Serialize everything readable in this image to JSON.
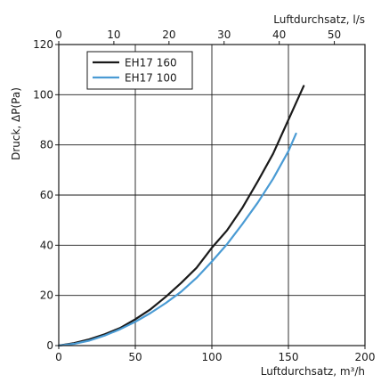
{
  "chart_data": {
    "type": "line",
    "xlabel": "Luftdurchsatz, m³/h",
    "ylabel": "Druck, ΔP(Pa)",
    "x2label": "Luftdurchsatz, l/s",
    "xlim": [
      0,
      200
    ],
    "ylim": [
      0,
      120
    ],
    "x2lim": [
      0,
      55.56
    ],
    "xticks": [
      "0",
      "50",
      "100",
      "150",
      "200"
    ],
    "yticks": [
      "0",
      "20",
      "40",
      "60",
      "80",
      "100",
      "120"
    ],
    "x2ticks": [
      "0",
      "10",
      "20",
      "30",
      "40",
      "50"
    ],
    "grid": true,
    "legend_position": "top-left",
    "series": [
      {
        "name": "EH17 160",
        "color": "#1a1a1a",
        "x": [
          0,
          10,
          20,
          30,
          40,
          50,
          60,
          70,
          80,
          90,
          100,
          110,
          120,
          130,
          140,
          150,
          160
        ],
        "y": [
          0,
          1,
          2.5,
          4.5,
          7,
          10.5,
          14.5,
          19.5,
          25,
          31,
          39,
          46,
          55,
          65.5,
          76.5,
          90,
          103.5
        ]
      },
      {
        "name": "EH17 100",
        "color": "#4a9bd4",
        "x": [
          0,
          10,
          20,
          30,
          40,
          50,
          60,
          70,
          80,
          90,
          100,
          110,
          120,
          130,
          140,
          150,
          155
        ],
        "y": [
          0,
          0.7,
          2,
          4,
          6.5,
          9.5,
          13,
          17,
          21.5,
          27,
          33.5,
          40.5,
          48.5,
          57,
          66.5,
          77.5,
          84.5
        ]
      }
    ]
  }
}
